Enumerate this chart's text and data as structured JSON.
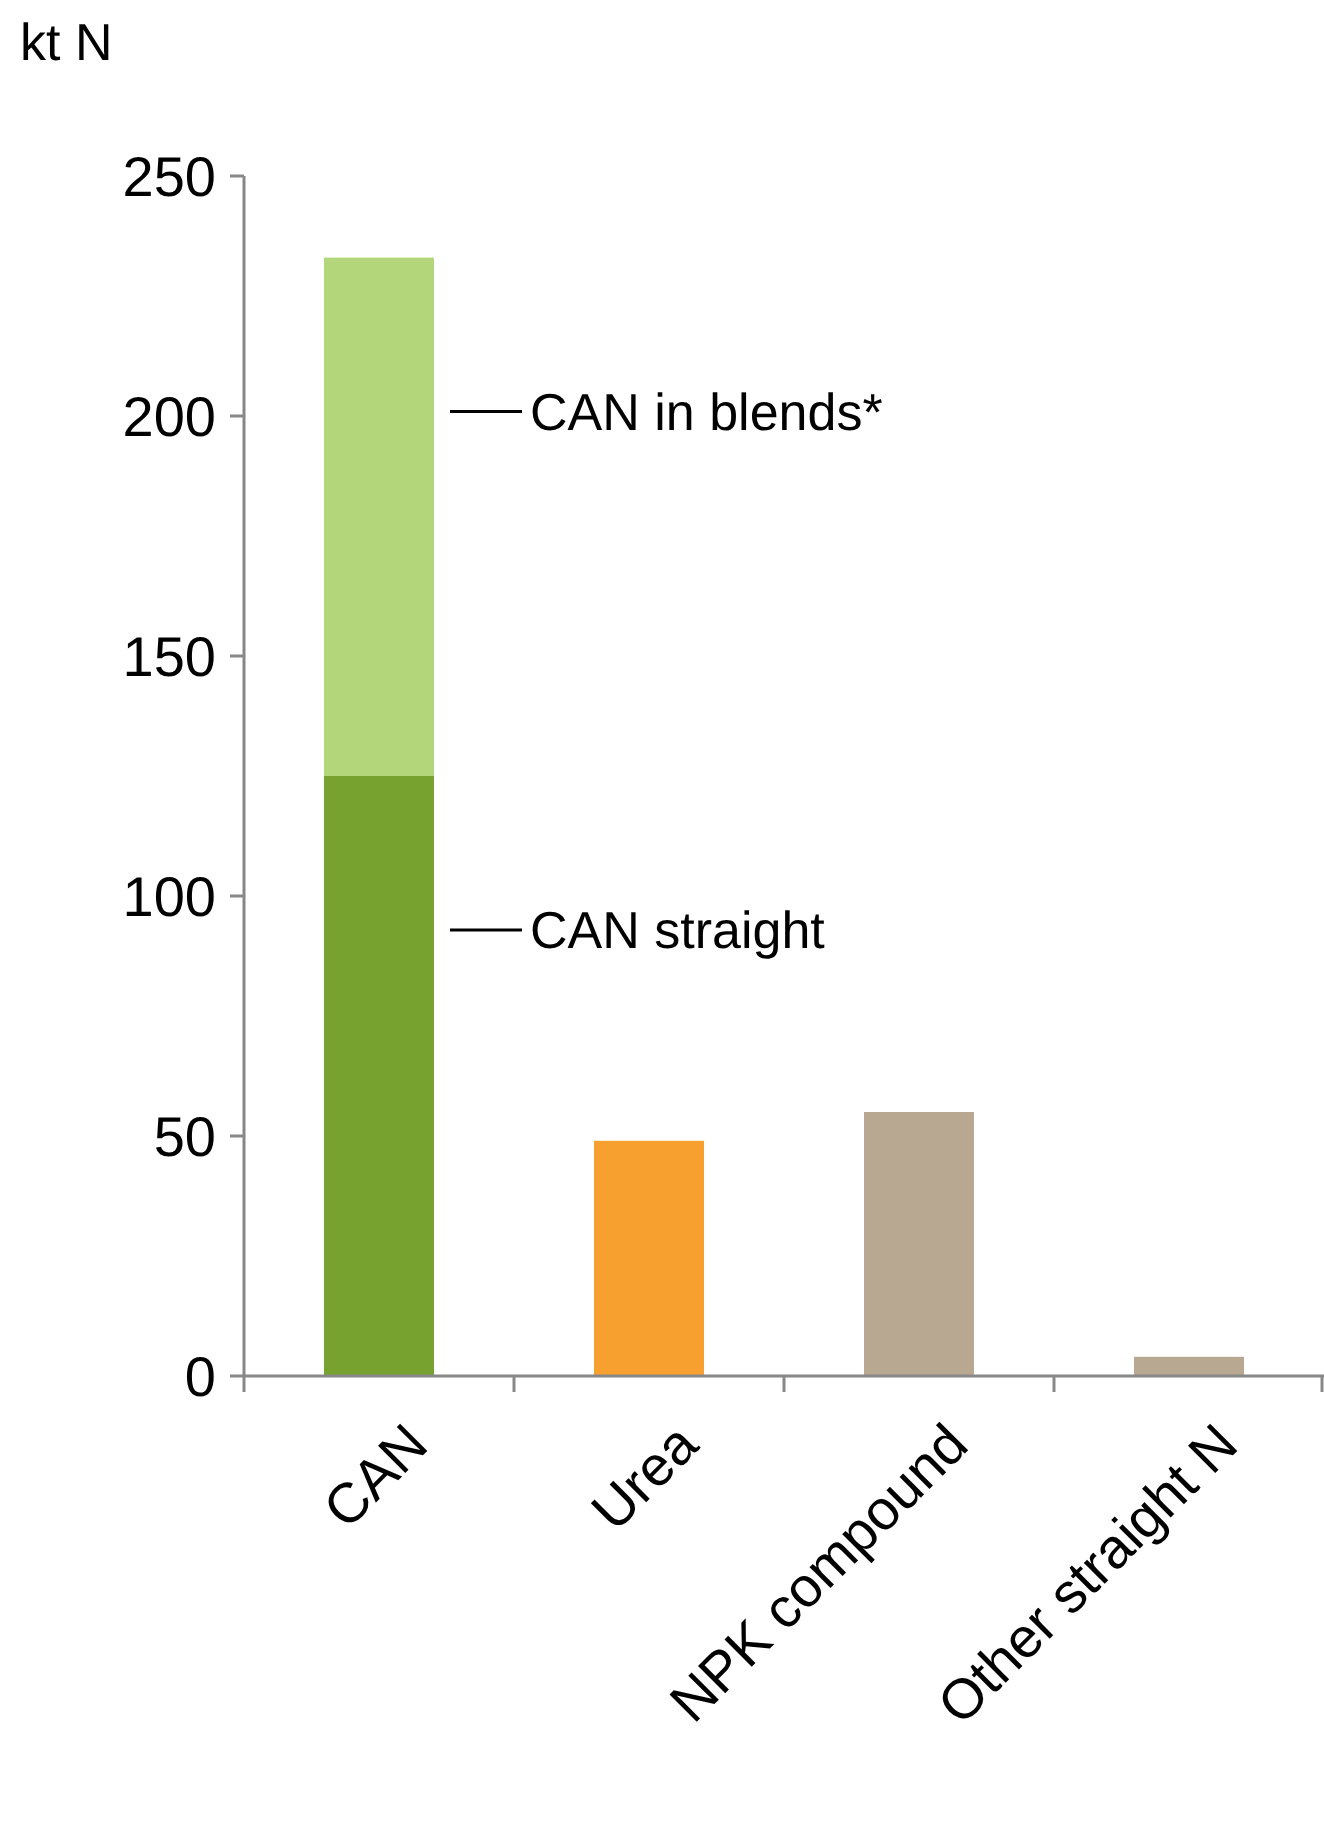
{
  "chart_data": {
    "type": "bar",
    "ylabel": "kt N",
    "categories": [
      "CAN",
      "Urea",
      "NPK compound",
      "Other straight N"
    ],
    "stacked": true,
    "legend": false,
    "grid": false,
    "series": [
      {
        "name": "CAN straight",
        "colors": [
          "#78a22f",
          "#f7a030",
          "#b8a892",
          "#b8a892"
        ],
        "values": [
          125,
          49,
          55,
          4
        ]
      },
      {
        "name": "CAN in blends*",
        "color": "#b3d67a",
        "values": [
          108,
          null,
          null,
          null
        ]
      }
    ],
    "ylim": [
      0,
      250
    ],
    "yticks": [
      0,
      50,
      100,
      150,
      200,
      250
    ]
  }
}
